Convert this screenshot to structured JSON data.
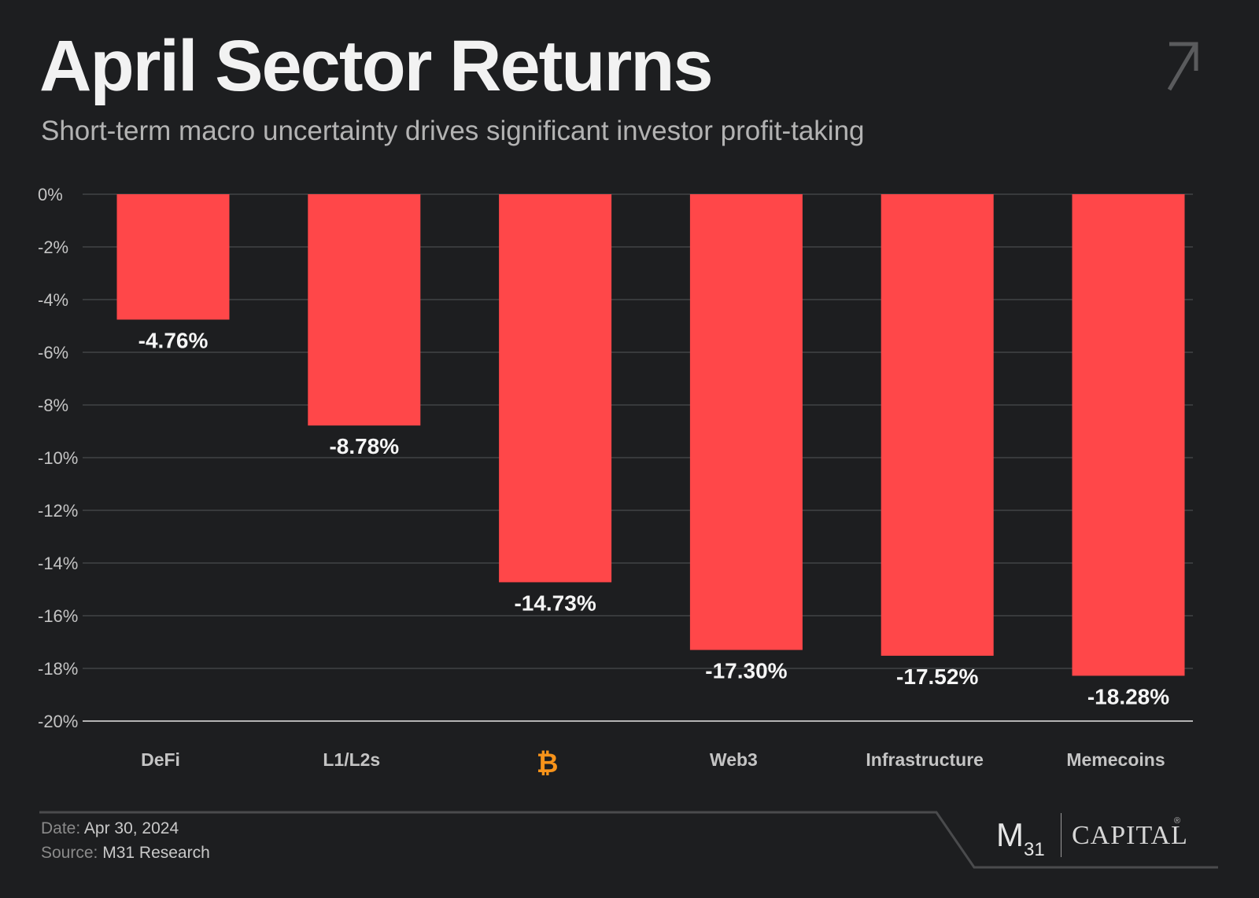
{
  "header": {
    "title": "April Sector Returns",
    "subtitle": "Short-term macro uncertainty drives significant investor profit-taking",
    "corner_icon": "arrow-up-right-icon"
  },
  "chart_data": {
    "type": "bar",
    "categories": [
      "DeFi",
      "L1/L2s",
      "",
      "Web3",
      "Infrastructure",
      "Memecoins"
    ],
    "category_icons": [
      null,
      null,
      "bitcoin-icon",
      null,
      null,
      null
    ],
    "values": [
      -4.76,
      -8.78,
      -14.73,
      -17.3,
      -17.52,
      -18.28
    ],
    "value_labels": [
      "-4.76%",
      "-8.78%",
      "-14.73%",
      "-17.30%",
      "-17.52%",
      "-18.28%"
    ],
    "title": "",
    "xlabel": "",
    "ylabel": "",
    "ylim": [
      -20,
      0
    ],
    "yticks": [
      0,
      -2,
      -4,
      -6,
      -8,
      -10,
      -12,
      -14,
      -16,
      -18,
      -20
    ],
    "ytick_labels": [
      "0%",
      "-2%",
      "-4%",
      "-6%",
      "-8%",
      "-10%",
      "-12%",
      "-14%",
      "-16%",
      "-18%",
      "-20%"
    ],
    "grid": true,
    "colors": {
      "bar": "#ff4749",
      "bitcoin_icon": "#f7931a",
      "grid": "#4a4b4d",
      "baseline": "#e6e6e6"
    }
  },
  "footer": {
    "date_key": "Date:",
    "date_value": "Apr 30, 2024",
    "source_key": "Source:",
    "source_value": "M31 Research",
    "logo": {
      "m": "M",
      "sub": "31",
      "capital": "CAPITAL",
      "reg": "®"
    }
  }
}
